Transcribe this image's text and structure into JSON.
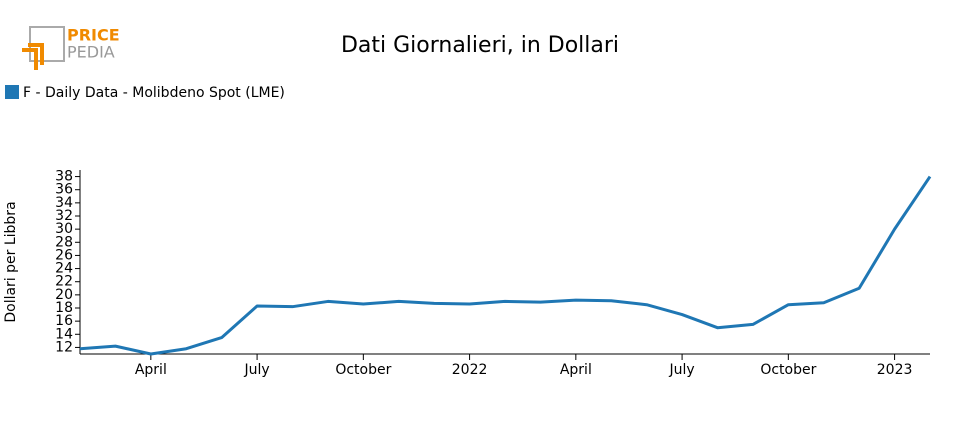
{
  "logo": {
    "top": "PRICE",
    "bottom": "PEDIA"
  },
  "chart_data": {
    "type": "line",
    "title": "Dati Giornalieri, in Dollari",
    "y_label": "Dollari per Libbra",
    "x": [
      "2021-02",
      "2021-03",
      "2021-04",
      "2021-05",
      "2021-06",
      "2021-07",
      "2021-08",
      "2021-09",
      "2021-10",
      "2021-11",
      "2021-12",
      "2022-01",
      "2022-02",
      "2022-03",
      "2022-04",
      "2022-05",
      "2022-06",
      "2022-07",
      "2022-08",
      "2022-09",
      "2022-10",
      "2022-11",
      "2022-12",
      "2023-01",
      "2023-02"
    ],
    "series": [
      {
        "name": "F - Daily Data - Molibdeno Spot (LME)",
        "color": "#1f77b4",
        "values": [
          11.8,
          12.2,
          11.0,
          11.8,
          13.5,
          18.3,
          18.2,
          19.0,
          18.6,
          19.0,
          18.7,
          18.6,
          19.0,
          18.9,
          19.2,
          19.1,
          18.5,
          17.0,
          15.0,
          15.5,
          18.5,
          18.8,
          21.0,
          30.0,
          38.0
        ]
      }
    ],
    "xlim": [
      "2021-02",
      "2023-02"
    ],
    "xticks": [
      {
        "value": "2021-04",
        "label": "April"
      },
      {
        "value": "2021-07",
        "label": "July"
      },
      {
        "value": "2021-10",
        "label": "October"
      },
      {
        "value": "2022-01",
        "label": "2022"
      },
      {
        "value": "2022-04",
        "label": "April"
      },
      {
        "value": "2022-07",
        "label": "July"
      },
      {
        "value": "2022-10",
        "label": "October"
      },
      {
        "value": "2023-01",
        "label": "2023"
      }
    ],
    "ylim": [
      11,
      39
    ],
    "yticks": [
      12,
      14,
      16,
      18,
      20,
      22,
      24,
      26,
      28,
      30,
      32,
      34,
      36,
      38
    ],
    "legend": "top-left"
  }
}
